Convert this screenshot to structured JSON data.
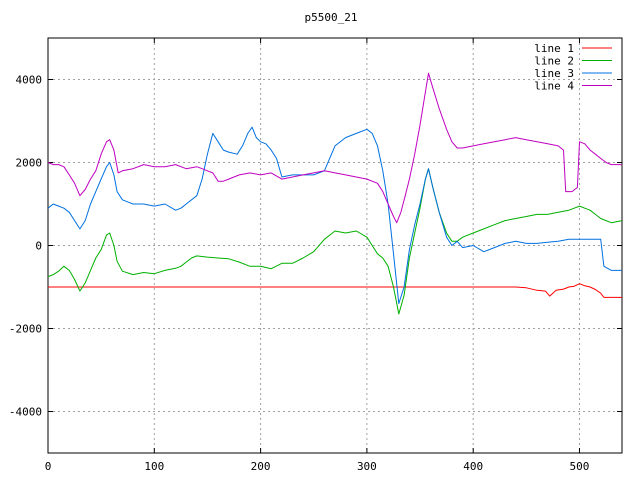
{
  "chart_data": {
    "type": "line",
    "title": "p5500_21",
    "xlabel": "",
    "ylabel": "",
    "xlim": [
      0,
      540
    ],
    "ylim": [
      -5000,
      5000
    ],
    "xticks": [
      0,
      100,
      200,
      300,
      400,
      500
    ],
    "yticks": [
      -4000,
      -2000,
      0,
      2000,
      4000
    ],
    "grid": true,
    "legend_position": "top-right",
    "series": [
      {
        "name": "line 1",
        "color": "#ff0000",
        "points": [
          [
            0,
            -1000
          ],
          [
            430,
            -1000
          ],
          [
            440,
            -1000
          ],
          [
            450,
            -1020
          ],
          [
            460,
            -1080
          ],
          [
            468,
            -1100
          ],
          [
            472,
            -1220
          ],
          [
            478,
            -1080
          ],
          [
            485,
            -1050
          ],
          [
            490,
            -1000
          ],
          [
            495,
            -980
          ],
          [
            500,
            -920
          ],
          [
            505,
            -970
          ],
          [
            510,
            -1000
          ],
          [
            515,
            -1060
          ],
          [
            520,
            -1150
          ],
          [
            523,
            -1250
          ],
          [
            540,
            -1250
          ]
        ]
      },
      {
        "name": "line 2",
        "color": "#00b000",
        "points": [
          [
            0,
            -750
          ],
          [
            5,
            -700
          ],
          [
            10,
            -620
          ],
          [
            15,
            -500
          ],
          [
            20,
            -600
          ],
          [
            25,
            -820
          ],
          [
            30,
            -1100
          ],
          [
            35,
            -900
          ],
          [
            40,
            -600
          ],
          [
            45,
            -300
          ],
          [
            50,
            -100
          ],
          [
            55,
            250
          ],
          [
            58,
            300
          ],
          [
            62,
            0
          ],
          [
            65,
            -380
          ],
          [
            70,
            -620
          ],
          [
            80,
            -700
          ],
          [
            90,
            -650
          ],
          [
            100,
            -680
          ],
          [
            110,
            -600
          ],
          [
            120,
            -550
          ],
          [
            125,
            -500
          ],
          [
            130,
            -400
          ],
          [
            135,
            -300
          ],
          [
            140,
            -250
          ],
          [
            150,
            -280
          ],
          [
            160,
            -300
          ],
          [
            170,
            -320
          ],
          [
            180,
            -400
          ],
          [
            190,
            -500
          ],
          [
            200,
            -500
          ],
          [
            210,
            -560
          ],
          [
            220,
            -430
          ],
          [
            230,
            -430
          ],
          [
            240,
            -300
          ],
          [
            250,
            -150
          ],
          [
            260,
            150
          ],
          [
            270,
            350
          ],
          [
            280,
            300
          ],
          [
            290,
            350
          ],
          [
            300,
            200
          ],
          [
            305,
            0
          ],
          [
            310,
            -200
          ],
          [
            315,
            -300
          ],
          [
            320,
            -500
          ],
          [
            325,
            -1000
          ],
          [
            330,
            -1650
          ],
          [
            335,
            -1200
          ],
          [
            340,
            -300
          ],
          [
            345,
            300
          ],
          [
            350,
            900
          ],
          [
            355,
            1600
          ],
          [
            358,
            1850
          ],
          [
            362,
            1400
          ],
          [
            368,
            800
          ],
          [
            375,
            300
          ],
          [
            380,
            100
          ],
          [
            385,
            100
          ],
          [
            390,
            200
          ],
          [
            400,
            300
          ],
          [
            410,
            400
          ],
          [
            420,
            500
          ],
          [
            430,
            600
          ],
          [
            440,
            650
          ],
          [
            450,
            700
          ],
          [
            460,
            750
          ],
          [
            470,
            750
          ],
          [
            480,
            800
          ],
          [
            490,
            850
          ],
          [
            495,
            900
          ],
          [
            500,
            950
          ],
          [
            505,
            900
          ],
          [
            510,
            850
          ],
          [
            515,
            750
          ],
          [
            520,
            650
          ],
          [
            525,
            600
          ],
          [
            530,
            550
          ],
          [
            540,
            600
          ]
        ]
      },
      {
        "name": "line 3",
        "color": "#0070e0",
        "points": [
          [
            0,
            900
          ],
          [
            5,
            1000
          ],
          [
            10,
            950
          ],
          [
            15,
            900
          ],
          [
            20,
            800
          ],
          [
            25,
            600
          ],
          [
            30,
            400
          ],
          [
            35,
            600
          ],
          [
            40,
            1000
          ],
          [
            45,
            1300
          ],
          [
            50,
            1600
          ],
          [
            55,
            1900
          ],
          [
            58,
            2000
          ],
          [
            62,
            1700
          ],
          [
            65,
            1300
          ],
          [
            70,
            1100
          ],
          [
            80,
            1000
          ],
          [
            90,
            1000
          ],
          [
            100,
            950
          ],
          [
            110,
            1000
          ],
          [
            120,
            850
          ],
          [
            125,
            900
          ],
          [
            130,
            1000
          ],
          [
            140,
            1200
          ],
          [
            145,
            1600
          ],
          [
            150,
            2200
          ],
          [
            155,
            2700
          ],
          [
            160,
            2500
          ],
          [
            165,
            2300
          ],
          [
            170,
            2250
          ],
          [
            178,
            2200
          ],
          [
            183,
            2400
          ],
          [
            188,
            2700
          ],
          [
            192,
            2850
          ],
          [
            196,
            2600
          ],
          [
            200,
            2500
          ],
          [
            205,
            2450
          ],
          [
            210,
            2300
          ],
          [
            215,
            2100
          ],
          [
            220,
            1650
          ],
          [
            230,
            1700
          ],
          [
            240,
            1700
          ],
          [
            250,
            1700
          ],
          [
            260,
            1800
          ],
          [
            270,
            2400
          ],
          [
            280,
            2600
          ],
          [
            290,
            2700
          ],
          [
            300,
            2800
          ],
          [
            305,
            2700
          ],
          [
            310,
            2400
          ],
          [
            315,
            1800
          ],
          [
            320,
            1000
          ],
          [
            325,
            -200
          ],
          [
            330,
            -1400
          ],
          [
            335,
            -1000
          ],
          [
            340,
            -100
          ],
          [
            345,
            500
          ],
          [
            350,
            1000
          ],
          [
            355,
            1600
          ],
          [
            358,
            1850
          ],
          [
            362,
            1400
          ],
          [
            368,
            800
          ],
          [
            375,
            200
          ],
          [
            380,
            0
          ],
          [
            385,
            100
          ],
          [
            390,
            -50
          ],
          [
            400,
            0
          ],
          [
            410,
            -150
          ],
          [
            420,
            -50
          ],
          [
            430,
            50
          ],
          [
            440,
            100
          ],
          [
            450,
            50
          ],
          [
            460,
            50
          ],
          [
            470,
            80
          ],
          [
            480,
            100
          ],
          [
            490,
            150
          ],
          [
            500,
            150
          ],
          [
            510,
            150
          ],
          [
            520,
            150
          ],
          [
            523,
            -500
          ],
          [
            530,
            -600
          ],
          [
            540,
            -600
          ]
        ]
      },
      {
        "name": "line 4",
        "color": "#c000c0",
        "points": [
          [
            0,
            2000
          ],
          [
            5,
            1950
          ],
          [
            10,
            1950
          ],
          [
            15,
            1900
          ],
          [
            20,
            1700
          ],
          [
            25,
            1500
          ],
          [
            30,
            1200
          ],
          [
            35,
            1350
          ],
          [
            40,
            1600
          ],
          [
            45,
            1800
          ],
          [
            50,
            2200
          ],
          [
            55,
            2500
          ],
          [
            58,
            2550
          ],
          [
            62,
            2300
          ],
          [
            66,
            1750
          ],
          [
            70,
            1800
          ],
          [
            80,
            1850
          ],
          [
            90,
            1950
          ],
          [
            100,
            1900
          ],
          [
            110,
            1900
          ],
          [
            120,
            1950
          ],
          [
            130,
            1850
          ],
          [
            140,
            1900
          ],
          [
            145,
            1850
          ],
          [
            150,
            1800
          ],
          [
            155,
            1750
          ],
          [
            160,
            1550
          ],
          [
            165,
            1550
          ],
          [
            170,
            1600
          ],
          [
            180,
            1700
          ],
          [
            190,
            1750
          ],
          [
            200,
            1700
          ],
          [
            210,
            1750
          ],
          [
            220,
            1600
          ],
          [
            230,
            1650
          ],
          [
            240,
            1700
          ],
          [
            250,
            1750
          ],
          [
            260,
            1800
          ],
          [
            270,
            1750
          ],
          [
            280,
            1700
          ],
          [
            290,
            1650
          ],
          [
            300,
            1600
          ],
          [
            310,
            1500
          ],
          [
            315,
            1300
          ],
          [
            320,
            1000
          ],
          [
            325,
            700
          ],
          [
            328,
            550
          ],
          [
            332,
            800
          ],
          [
            336,
            1200
          ],
          [
            340,
            1600
          ],
          [
            345,
            2200
          ],
          [
            350,
            2900
          ],
          [
            355,
            3700
          ],
          [
            358,
            4150
          ],
          [
            362,
            3800
          ],
          [
            368,
            3300
          ],
          [
            375,
            2800
          ],
          [
            380,
            2500
          ],
          [
            385,
            2350
          ],
          [
            390,
            2350
          ],
          [
            400,
            2400
          ],
          [
            410,
            2450
          ],
          [
            420,
            2500
          ],
          [
            430,
            2550
          ],
          [
            440,
            2600
          ],
          [
            450,
            2550
          ],
          [
            460,
            2500
          ],
          [
            470,
            2450
          ],
          [
            480,
            2400
          ],
          [
            485,
            2300
          ],
          [
            487,
            1300
          ],
          [
            493,
            1300
          ],
          [
            498,
            1400
          ],
          [
            500,
            2500
          ],
          [
            505,
            2450
          ],
          [
            510,
            2300
          ],
          [
            515,
            2200
          ],
          [
            520,
            2100
          ],
          [
            525,
            2000
          ],
          [
            530,
            1950
          ],
          [
            540,
            1950
          ]
        ]
      }
    ]
  }
}
